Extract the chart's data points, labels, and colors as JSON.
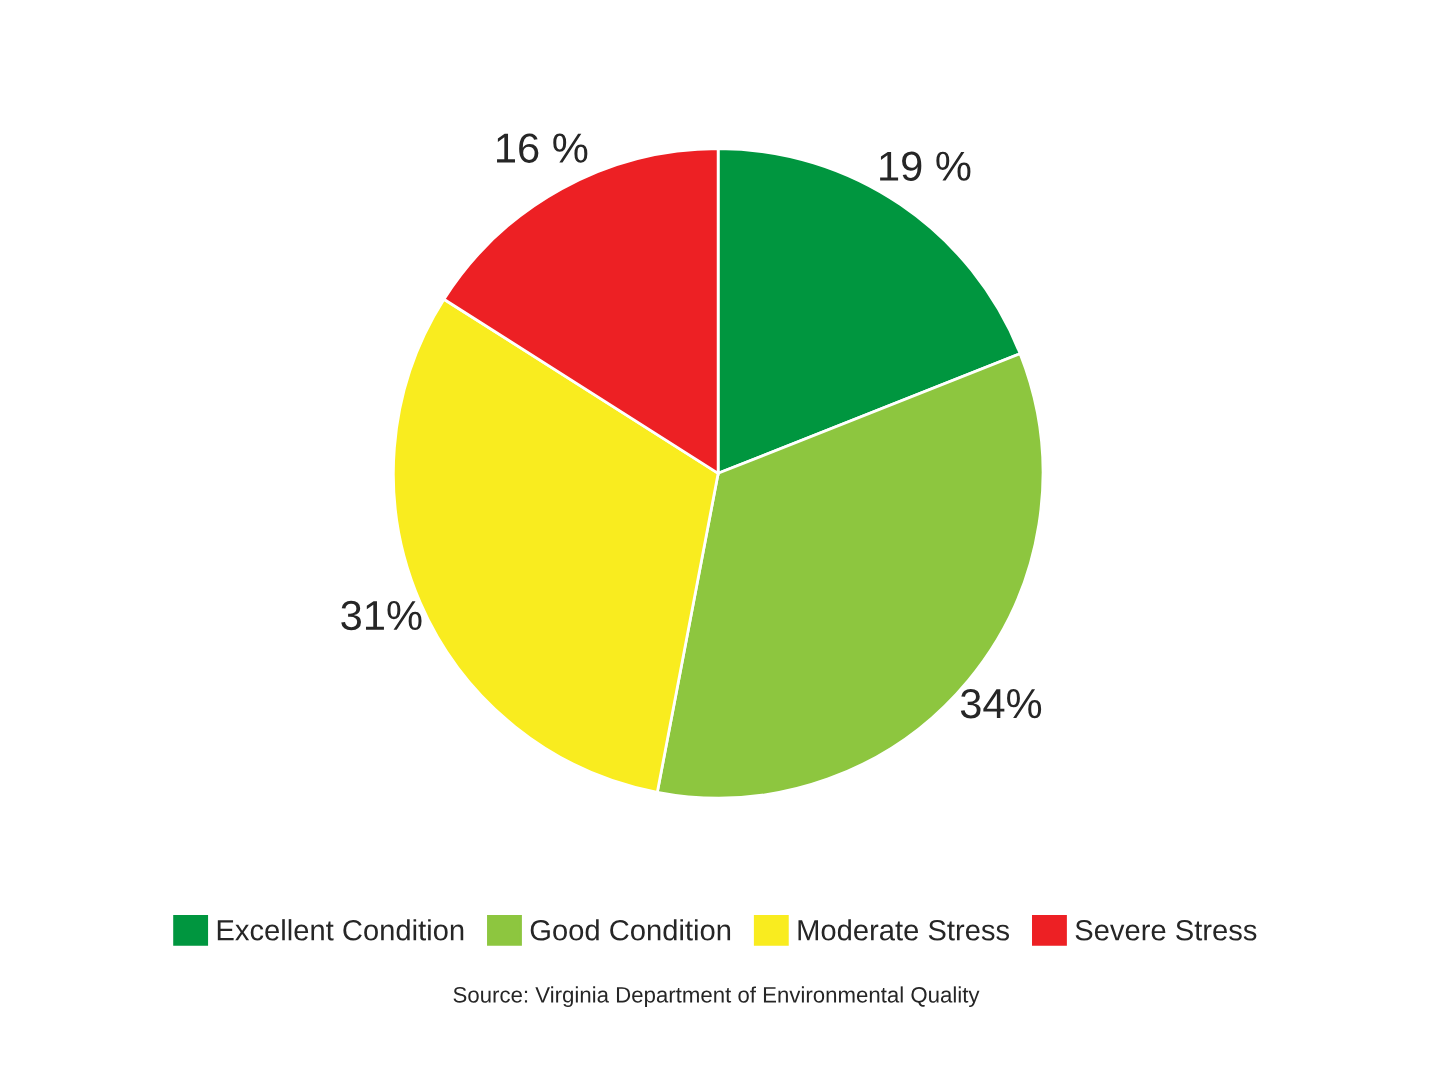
{
  "chart_data": {
    "type": "pie",
    "categories": [
      "Excellent Condition",
      "Good Condition",
      "Moderate Stress",
      "Severe Stress"
    ],
    "values": [
      19,
      34,
      31,
      16
    ],
    "value_labels": [
      "19 %",
      "34%",
      "31%",
      "16 %"
    ],
    "colors": [
      "#00963f",
      "#8dc63f",
      "#f9ec1f",
      "#ed2024"
    ],
    "legend": "bottom",
    "annotations": [
      "Source: Virginia Department of Environmental Quality"
    ]
  }
}
